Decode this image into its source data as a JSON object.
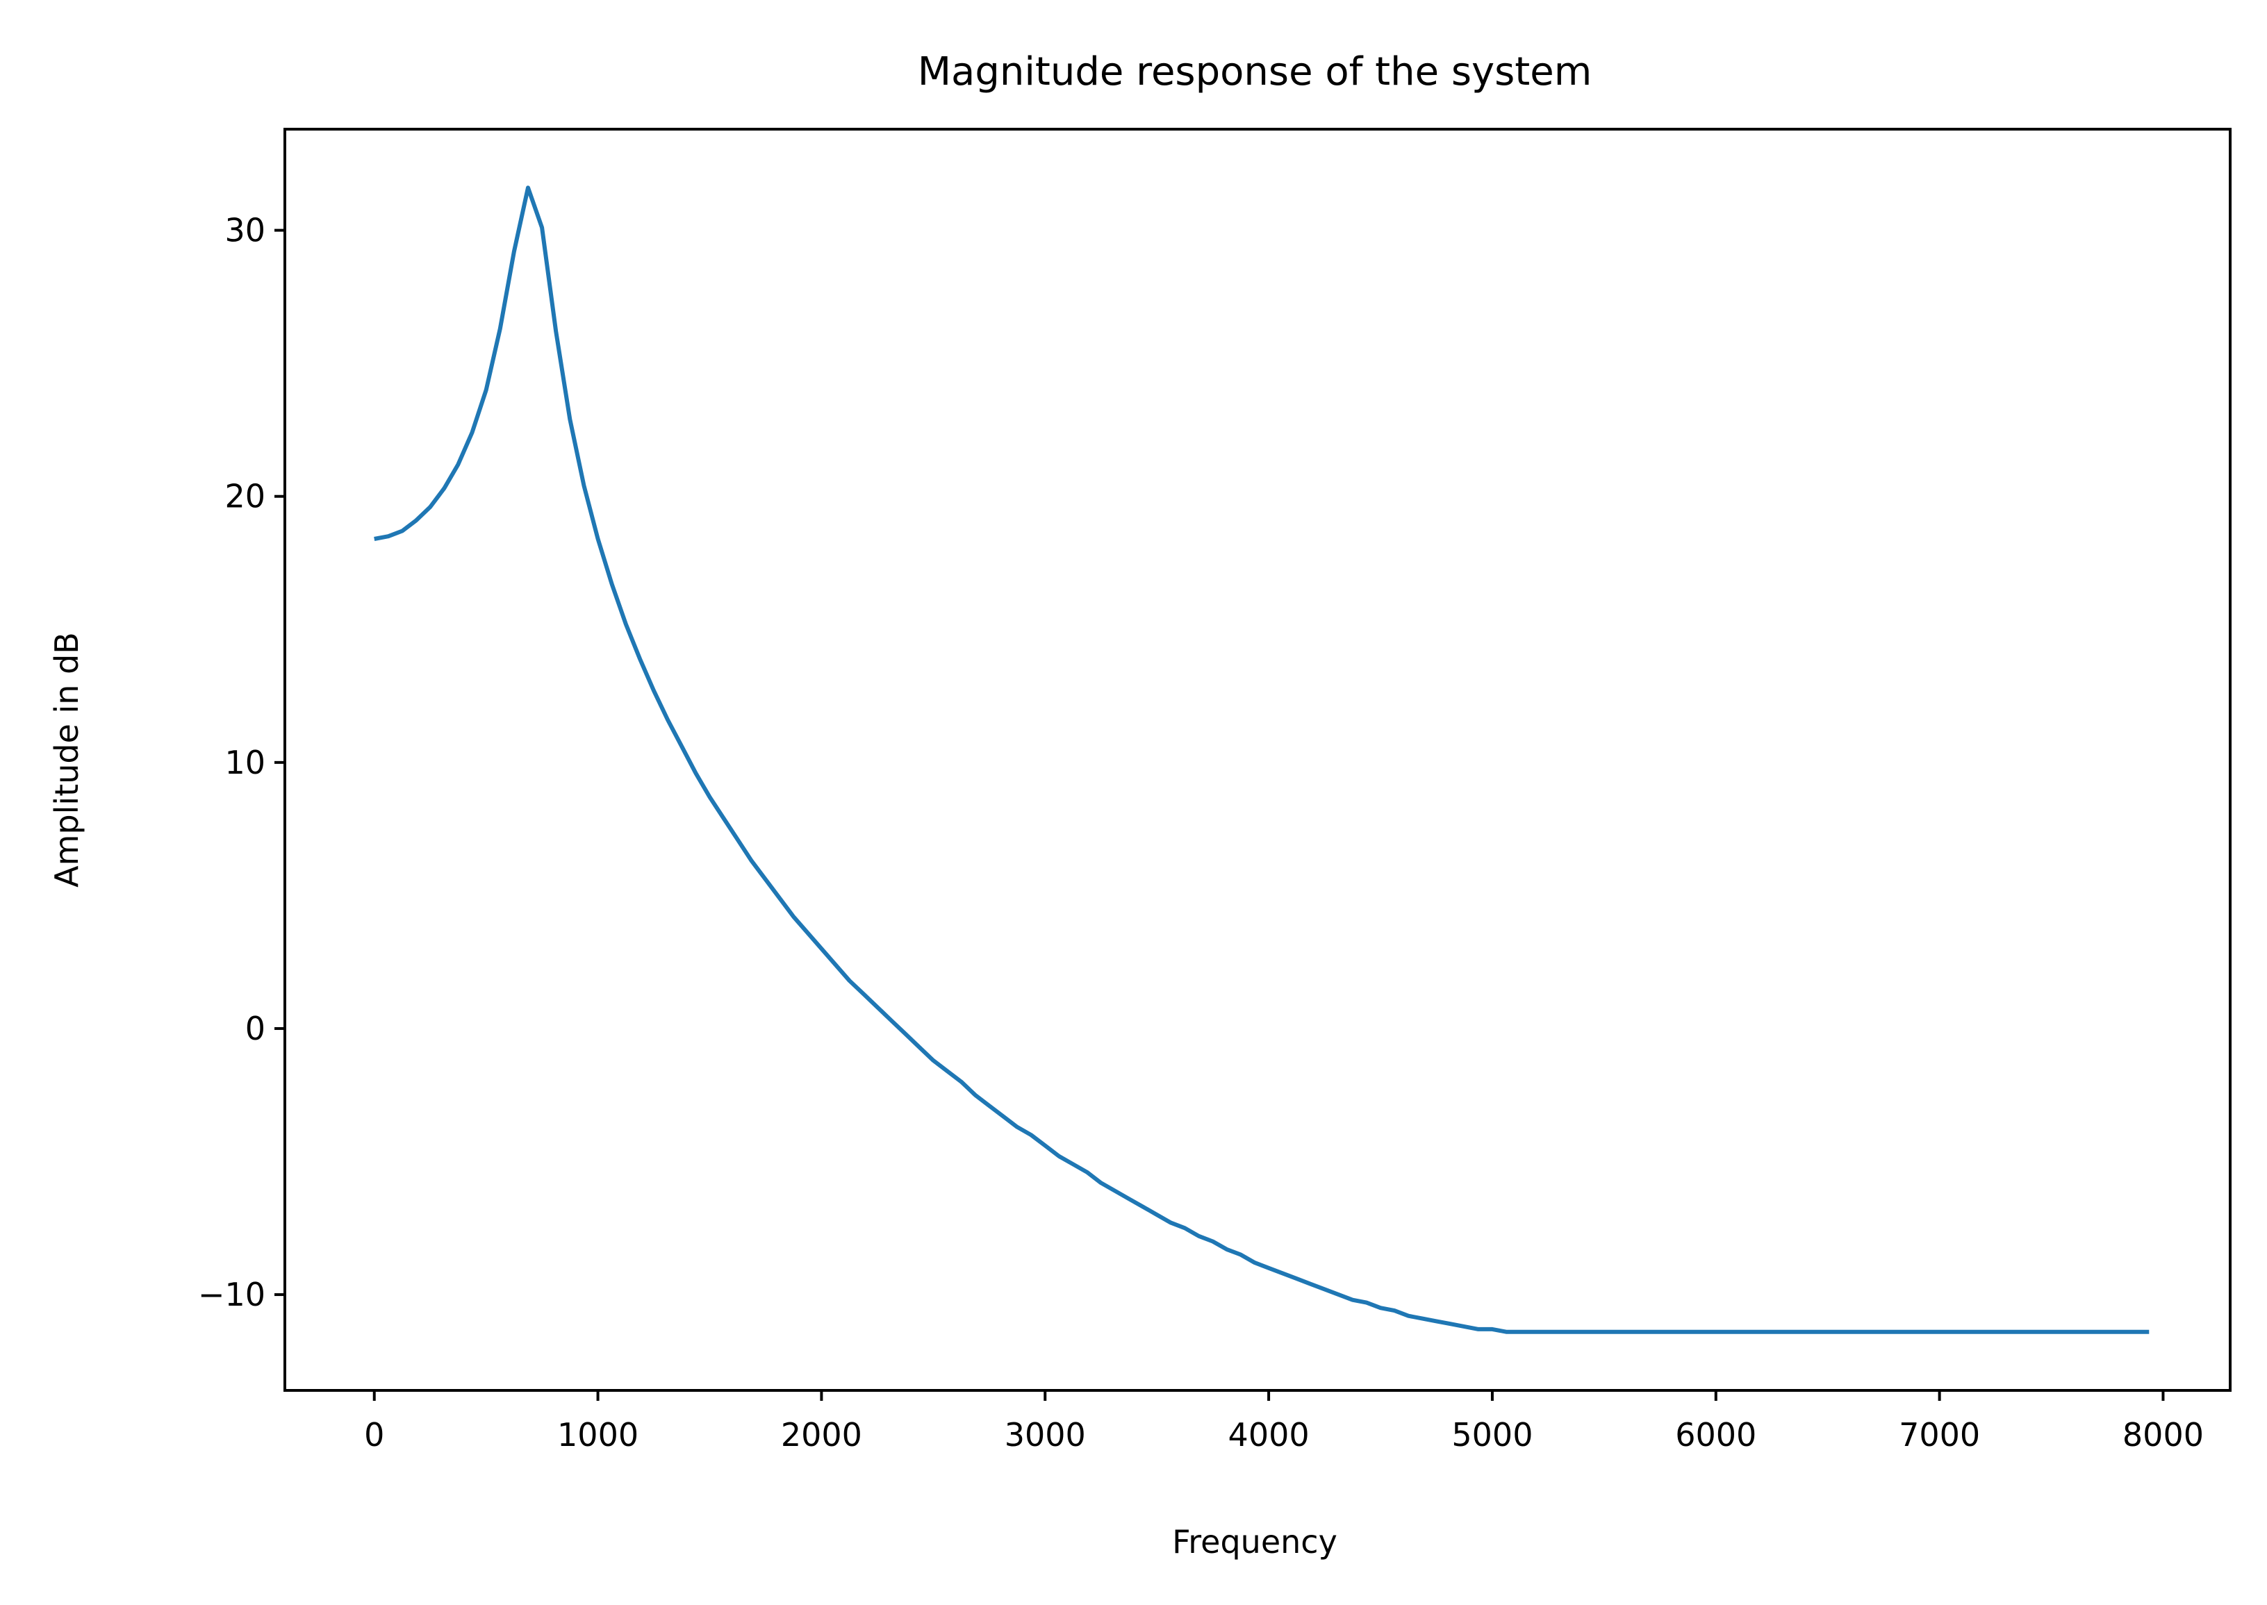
{
  "chart_data": {
    "type": "line",
    "title": "Magnitude response of the system",
    "xlabel": "Frequency",
    "ylabel": "Amplitude in dB",
    "xlim": [
      -400,
      8300
    ],
    "ylim": [
      -13.6,
      33.8
    ],
    "grid": false,
    "legend": "none",
    "x_ticks": [
      0,
      1000,
      2000,
      3000,
      4000,
      5000,
      6000,
      7000,
      8000
    ],
    "x_tick_labels": [
      "0",
      "1000",
      "2000",
      "3000",
      "4000",
      "5000",
      "6000",
      "7000",
      "8000"
    ],
    "y_ticks": [
      -10,
      0,
      10,
      20,
      30
    ],
    "y_tick_labels": [
      "−10",
      "0",
      "10",
      "20",
      "30"
    ],
    "series": [
      {
        "color": "#1f77b4",
        "x": [
          0,
          62.5,
          125,
          187.5,
          250,
          312.5,
          375,
          437.5,
          500,
          562.5,
          625,
          687.5,
          750,
          812.5,
          875,
          937.5,
          1000,
          1062.5,
          1125,
          1187.5,
          1250,
          1312.5,
          1375,
          1437.5,
          1500,
          1562.5,
          1625,
          1687.5,
          1750,
          1812.5,
          1875,
          1937.5,
          2000,
          2062.5,
          2125,
          2187.5,
          2250,
          2312.5,
          2375,
          2437.5,
          2500,
          2562.5,
          2625,
          2687.5,
          2750,
          2812.5,
          2875,
          2937.5,
          3000,
          3062.5,
          3125,
          3187.5,
          3250,
          3312.5,
          3375,
          3437.5,
          3500,
          3562.5,
          3625,
          3687.5,
          3750,
          3812.5,
          3875,
          3937.5,
          4000,
          4062.5,
          4125,
          4187.5,
          4250,
          4312.5,
          4375,
          4437.5,
          4500,
          4562.5,
          4625,
          4687.5,
          4750,
          4812.5,
          4875,
          4937.5,
          5000,
          5062.5,
          5125,
          5187.5,
          5250,
          5312.5,
          5375,
          5437.5,
          5500,
          5562.5,
          5625,
          5687.5,
          5750,
          5812.5,
          5875,
          5937.5,
          6000,
          6062.5,
          6125,
          6187.5,
          6250,
          6312.5,
          6375,
          6437.5,
          6500,
          6562.5,
          6625,
          6687.5,
          6750,
          6812.5,
          6875,
          6937.5,
          7000,
          7062.5,
          7125,
          7187.5,
          7250,
          7312.5,
          7375,
          7437.5,
          7500,
          7562.5,
          7625,
          7687.5,
          7750,
          7812.5,
          7875,
          7937.5
        ],
        "y": [
          18.4,
          18.5,
          18.7,
          19.1,
          19.6,
          20.3,
          21.2,
          22.4,
          24.0,
          26.3,
          29.2,
          31.6,
          30.1,
          26.2,
          22.9,
          20.4,
          18.4,
          16.7,
          15.2,
          13.9,
          12.7,
          11.6,
          10.6,
          9.6,
          8.7,
          7.9,
          7.1,
          6.3,
          5.6,
          4.9,
          4.2,
          3.6,
          3.0,
          2.4,
          1.8,
          1.3,
          0.8,
          0.3,
          -0.2,
          -0.7,
          -1.2,
          -1.6,
          -2.0,
          -2.5,
          -2.9,
          -3.3,
          -3.7,
          -4.0,
          -4.4,
          -4.8,
          -5.1,
          -5.4,
          -5.8,
          -6.1,
          -6.4,
          -6.7,
          -7.0,
          -7.3,
          -7.5,
          -7.8,
          -8.0,
          -8.3,
          -8.5,
          -8.8,
          -9.0,
          -9.2,
          -9.4,
          -9.6,
          -9.8,
          -10.0,
          -10.2,
          -10.3,
          -10.5,
          -10.6,
          -10.8,
          -10.9,
          -11.0,
          -11.1,
          -11.2,
          -11.3,
          -11.3,
          -11.4,
          -11.4,
          -11.4,
          -11.4,
          -11.4,
          -11.4,
          -11.4,
          -11.4,
          -11.4,
          -11.4,
          -11.4,
          -11.4,
          -11.4,
          -11.4,
          -11.4,
          -11.4,
          -11.4,
          -11.4,
          -11.4,
          -11.4,
          -11.4,
          -11.4,
          -11.4,
          -11.4,
          -11.4,
          -11.4,
          -11.4,
          -11.4,
          -11.4,
          -11.4,
          -11.4,
          -11.4,
          -11.4,
          -11.4,
          -11.4,
          -11.4,
          -11.4,
          -11.4,
          -11.4,
          -11.4,
          -11.4,
          -11.4,
          -11.4,
          -11.4,
          -11.4,
          -11.4,
          -11.4
        ]
      }
    ]
  }
}
